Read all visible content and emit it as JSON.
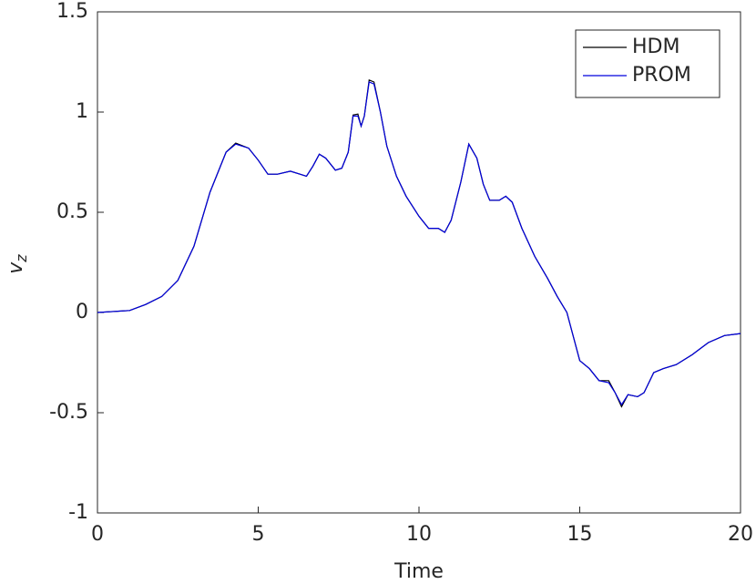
{
  "chart_data": {
    "type": "line",
    "xlabel": "Time",
    "ylabel": "v",
    "ylabel_subscript": "z",
    "x": [
      0,
      1,
      1.5,
      2,
      2.5,
      3,
      3.5,
      4,
      4.3,
      4.7,
      5,
      5.3,
      5.6,
      6,
      6.3,
      6.5,
      6.7,
      6.9,
      7.1,
      7.4,
      7.6,
      7.8,
      7.95,
      8.1,
      8.2,
      8.3,
      8.45,
      8.6,
      8.8,
      9,
      9.3,
      9.6,
      10,
      10.3,
      10.6,
      10.8,
      11,
      11.3,
      11.55,
      11.8,
      12,
      12.2,
      12.5,
      12.7,
      12.9,
      13.2,
      13.6,
      14,
      14.3,
      14.6,
      14.8,
      15,
      15.3,
      15.6,
      15.9,
      16.1,
      16.3,
      16.5,
      16.8,
      17,
      17.3,
      17.6,
      18,
      18.5,
      19,
      19.5,
      20
    ],
    "series": [
      {
        "name": "HDM",
        "color": "#000000",
        "values": [
          0,
          0.01,
          0.04,
          0.08,
          0.16,
          0.33,
          0.6,
          0.8,
          0.845,
          0.82,
          0.76,
          0.69,
          0.69,
          0.705,
          0.69,
          0.68,
          0.73,
          0.79,
          0.77,
          0.71,
          0.72,
          0.8,
          0.985,
          0.99,
          0.93,
          0.98,
          1.16,
          1.15,
          1.0,
          0.83,
          0.68,
          0.58,
          0.48,
          0.42,
          0.42,
          0.4,
          0.46,
          0.65,
          0.84,
          0.77,
          0.64,
          0.56,
          0.56,
          0.58,
          0.55,
          0.42,
          0.28,
          0.17,
          0.08,
          0.0,
          -0.12,
          -0.24,
          -0.28,
          -0.34,
          -0.34,
          -0.4,
          -0.47,
          -0.41,
          -0.42,
          -0.4,
          -0.3,
          -0.28,
          -0.26,
          -0.21,
          -0.15,
          -0.115,
          -0.105
        ]
      },
      {
        "name": "PROM",
        "color": "#0000dd",
        "values": [
          0,
          0.01,
          0.04,
          0.08,
          0.16,
          0.33,
          0.6,
          0.8,
          0.84,
          0.82,
          0.76,
          0.69,
          0.69,
          0.705,
          0.69,
          0.68,
          0.73,
          0.79,
          0.77,
          0.71,
          0.72,
          0.8,
          0.98,
          0.98,
          0.93,
          0.98,
          1.15,
          1.14,
          1.0,
          0.83,
          0.68,
          0.58,
          0.48,
          0.42,
          0.42,
          0.4,
          0.46,
          0.65,
          0.84,
          0.77,
          0.64,
          0.56,
          0.56,
          0.58,
          0.55,
          0.42,
          0.28,
          0.17,
          0.08,
          0.0,
          -0.12,
          -0.24,
          -0.28,
          -0.34,
          -0.35,
          -0.4,
          -0.46,
          -0.41,
          -0.42,
          -0.4,
          -0.3,
          -0.28,
          -0.26,
          -0.21,
          -0.15,
          -0.115,
          -0.105
        ]
      }
    ],
    "xlim": [
      0,
      20
    ],
    "xticks": [
      0,
      5,
      10,
      15,
      20
    ],
    "ylim": [
      -1,
      1.5
    ],
    "yticks": [
      -1,
      -0.5,
      0,
      0.5,
      1,
      1.5
    ],
    "grid": false,
    "legend": "northeast"
  }
}
